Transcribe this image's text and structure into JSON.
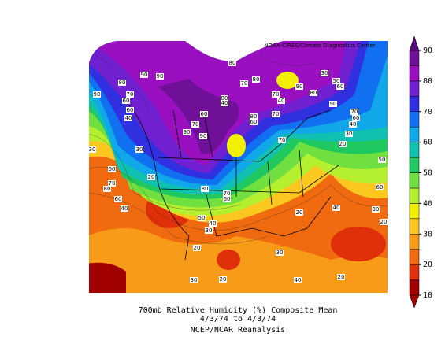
{
  "map": {
    "credit": "NOAA-CIRES/Climate Diagnostics Center",
    "colorbar": {
      "ticks": [
        10,
        20,
        30,
        40,
        50,
        60,
        70,
        80,
        90
      ],
      "colors": [
        "#a00000",
        "#e0300a",
        "#f06a10",
        "#f89b18",
        "#fcc820",
        "#f0f000",
        "#b4f030",
        "#70e040",
        "#20c860",
        "#10c0b0",
        "#10a8e8",
        "#1070f0",
        "#3030e0",
        "#7020d0",
        "#9a10c0",
        "#701098"
      ]
    },
    "contour_labels": [
      90,
      80,
      90,
      90,
      70,
      60,
      60,
      40,
      30,
      30,
      60,
      70,
      80,
      60,
      40,
      20,
      80,
      80,
      70,
      80,
      40,
      60,
      70,
      90,
      90,
      80,
      60,
      70,
      70,
      40,
      70,
      80,
      70,
      60,
      50,
      40,
      30,
      20,
      30,
      20,
      30,
      40,
      20,
      20,
      40,
      30,
      20,
      60,
      50,
      20,
      30,
      40,
      60,
      30,
      50,
      60,
      80,
      90,
      90,
      70
    ]
  },
  "caption": {
    "line1": "700mb Relative Humidity (%) Composite Mean",
    "line2": "4/3/74  to 4/3/74",
    "line3": "NCEP/NCAR Reanalysis"
  }
}
